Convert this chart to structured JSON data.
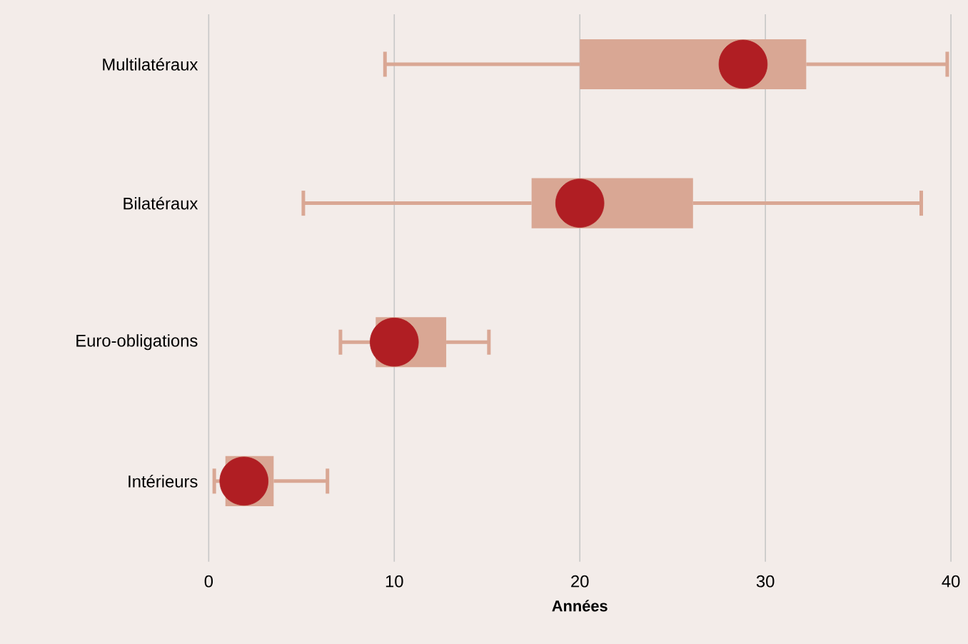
{
  "chart_data": {
    "type": "box",
    "orientation": "horizontal",
    "xlabel": "Années",
    "categories": [
      "Multilatéraux",
      "Bilatéraux",
      "Euro-obligations",
      "Intérieurs"
    ],
    "color": "#d9a794",
    "boxes": [
      {
        "low": 9.5,
        "q1": 20,
        "median": 28.8,
        "q3": 32.2,
        "high": 39.8
      },
      {
        "low": 5.1,
        "q1": 17.4,
        "median": 20,
        "q3": 26.1,
        "high": 38.4
      },
      {
        "low": 7.1,
        "q1": 9,
        "median": 10,
        "q3": 12.8,
        "high": 15.1
      },
      {
        "low": 0.3,
        "q1": 0.9,
        "median": 1.9,
        "q3": 3.5,
        "high": 6.4
      }
    ],
    "xlim": [
      0,
      40
    ],
    "xticks": [
      0,
      10,
      20,
      30,
      40
    ],
    "grid": "x"
  }
}
